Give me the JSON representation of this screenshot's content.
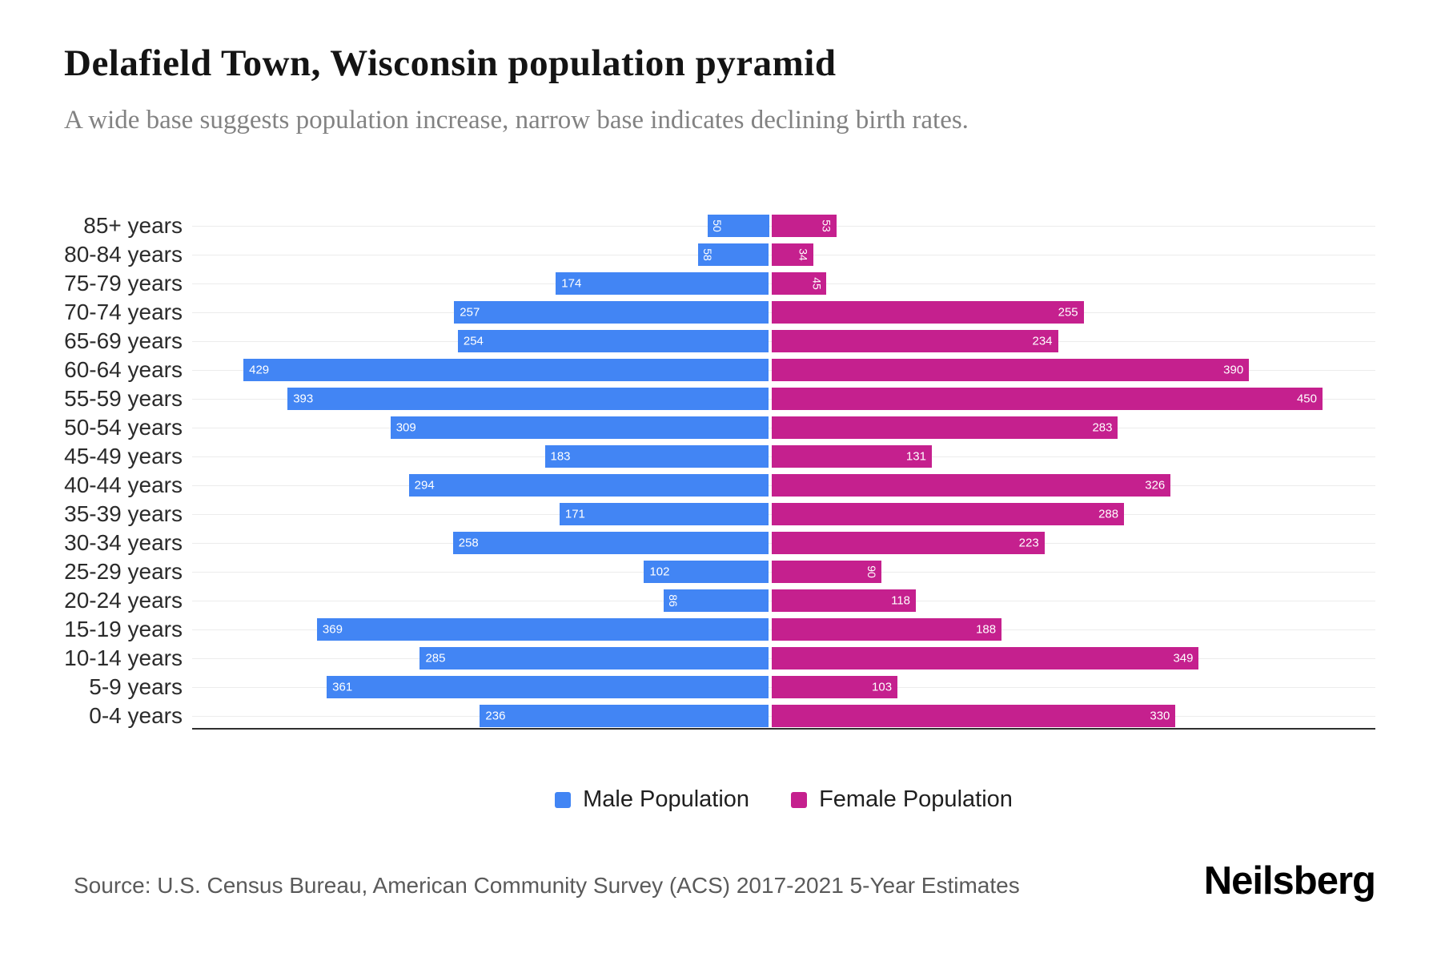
{
  "page": {
    "title": "Delafield Town, Wisconsin population pyramid",
    "subtitle": "A wide base suggests population increase, narrow base indicates declining birth rates.",
    "source": "Source: U.S. Census Bureau, American Community Survey (ACS) 2017-2021 5-Year Estimates",
    "brand": "Neilsberg"
  },
  "legend": {
    "male_label": "Male Population",
    "female_label": "Female Population"
  },
  "colors": {
    "male": "#4285F4",
    "female": "#C5208E",
    "gridline": "#ececec",
    "axis_line": "#2f2f2f"
  },
  "chart_data": {
    "type": "bar",
    "variant": "population-pyramid-horizontal",
    "title": "Delafield Town, Wisconsin population pyramid",
    "categories": [
      "85+ years",
      "80-84 years",
      "75-79 years",
      "70-74 years",
      "65-69 years",
      "60-64 years",
      "55-59 years",
      "50-54 years",
      "45-49 years",
      "40-44 years",
      "35-39 years",
      "30-34 years",
      "25-29 years",
      "20-24 years",
      "15-19 years",
      "10-14 years",
      "5-9 years",
      "0-4 years"
    ],
    "series": [
      {
        "name": "Male Population",
        "side": "left",
        "color": "#4285F4",
        "values": [
          50,
          58,
          174,
          257,
          254,
          429,
          393,
          309,
          183,
          294,
          171,
          258,
          102,
          86,
          369,
          285,
          361,
          236
        ]
      },
      {
        "name": "Female Population",
        "side": "right",
        "color": "#C5208E",
        "values": [
          53,
          34,
          45,
          255,
          234,
          390,
          450,
          283,
          131,
          326,
          288,
          223,
          90,
          118,
          188,
          349,
          103,
          330
        ]
      }
    ],
    "value_labels": "inside-outer-end, rotated vertical when value < 100",
    "x_axis": {
      "visible_ticks": false,
      "max_each_side": 450
    },
    "grid": true,
    "legend_position": "bottom"
  }
}
